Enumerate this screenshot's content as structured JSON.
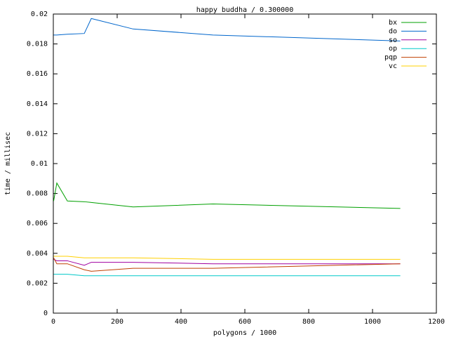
{
  "chart_data": {
    "type": "line",
    "title": "happy buddha / 0.300000",
    "x_label": "polygons / 1000",
    "y_label": "time / millisec",
    "x": [
      1,
      11,
      44,
      97,
      119,
      250,
      500,
      1087
    ],
    "xlim": [
      0,
      1200
    ],
    "xticks": [
      0,
      200,
      400,
      600,
      800,
      1000,
      1200
    ],
    "ylim": [
      0,
      0.02
    ],
    "yticks": [
      0,
      0.002,
      0.004,
      0.006,
      0.008,
      0.01,
      0.012,
      0.014,
      0.016,
      0.018,
      0.02
    ],
    "legend": "top-right",
    "series": [
      {
        "name": "bx",
        "color": "#00a000",
        "values": [
          0.0075,
          0.0087,
          0.0075,
          0.00745,
          0.0074,
          0.0071,
          0.0073,
          0.007
        ]
      },
      {
        "name": "do",
        "color": "#0066cc",
        "values": [
          0.0186,
          0.0186,
          0.01865,
          0.0187,
          0.0197,
          0.019,
          0.0186,
          0.0182
        ]
      },
      {
        "name": "so",
        "color": "#a000a0",
        "values": [
          0.0036,
          0.0035,
          0.0035,
          0.0032,
          0.0034,
          0.0034,
          0.0033,
          0.0033
        ]
      },
      {
        "name": "op",
        "color": "#00c8c8",
        "values": [
          0.0026,
          0.0026,
          0.0026,
          0.0025,
          0.0025,
          0.0025,
          0.0025,
          0.0025
        ]
      },
      {
        "name": "pqp",
        "color": "#c04000",
        "values": [
          0.0037,
          0.0033,
          0.0033,
          0.0029,
          0.0028,
          0.003,
          0.003,
          0.0033
        ]
      },
      {
        "name": "vc",
        "color": "#ffd000",
        "values": [
          0.0038,
          0.0038,
          0.0038,
          0.0037,
          0.0037,
          0.0037,
          0.0036,
          0.0036
        ]
      }
    ]
  }
}
